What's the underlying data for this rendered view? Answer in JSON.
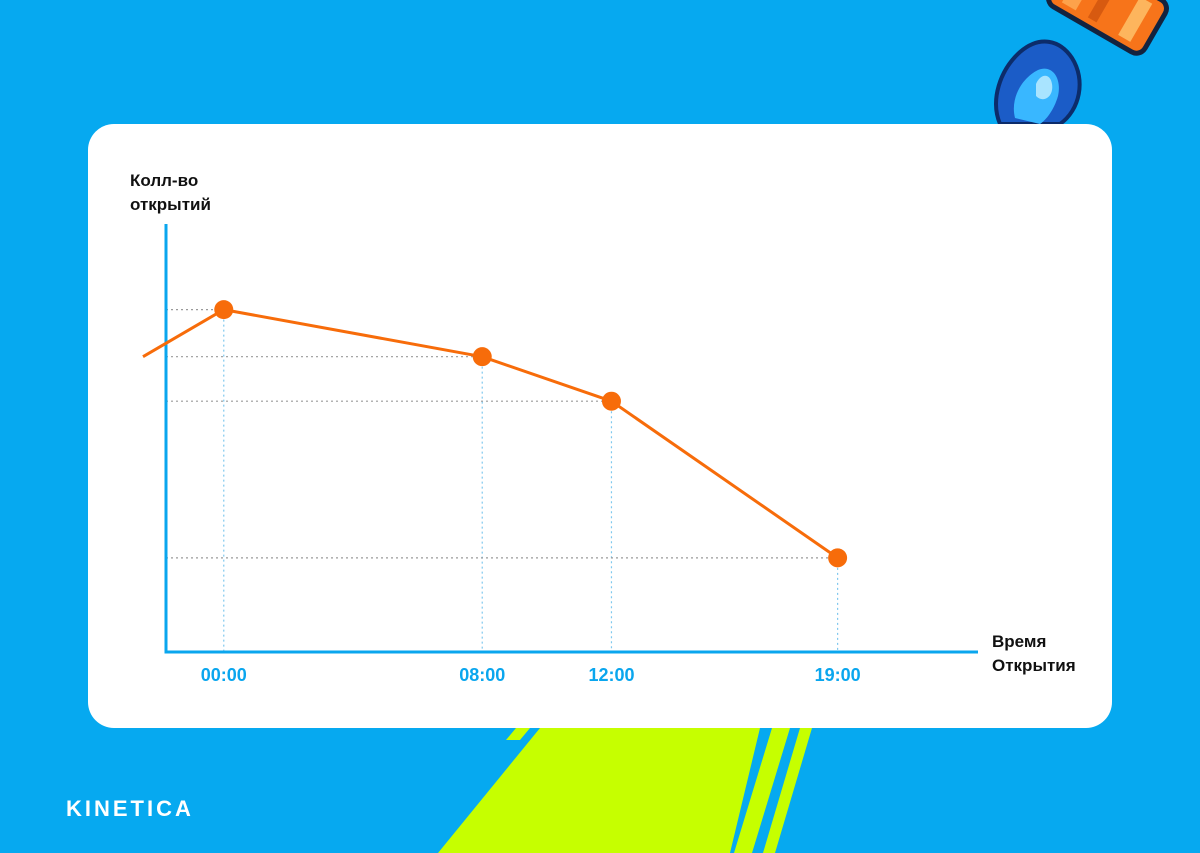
{
  "brand": {
    "name": "KINETICA"
  },
  "colors": {
    "background": "#06a9f0",
    "card": "#ffffff",
    "line": "#f76c0a",
    "axis": "#0aa6ee",
    "tick_text": "#0aa6ee",
    "accent_stripes": "#c6ff00"
  },
  "chart_data": {
    "type": "line",
    "ylabel": "Колл-во открытий",
    "ylabel_lines": [
      "Колл-во",
      "открытий"
    ],
    "xlabel": "Время Открытия",
    "xlabel_lines": [
      "Время",
      "Открытия"
    ],
    "categories": [
      "00:00",
      "08:00",
      "12:00",
      "19:00"
    ],
    "x": [
      0,
      8,
      12,
      19
    ],
    "values": [
      4,
      3.45,
      2.93,
      1.1
    ],
    "leading_segment_start": {
      "x": -2.5,
      "y": 3.45
    },
    "ylim": [
      0,
      5
    ],
    "xlim": [
      -2.5,
      23.5
    ],
    "y_axis_numbers_shown": false,
    "grid": "dotted guide lines from each point to both axes",
    "legend": "none"
  }
}
